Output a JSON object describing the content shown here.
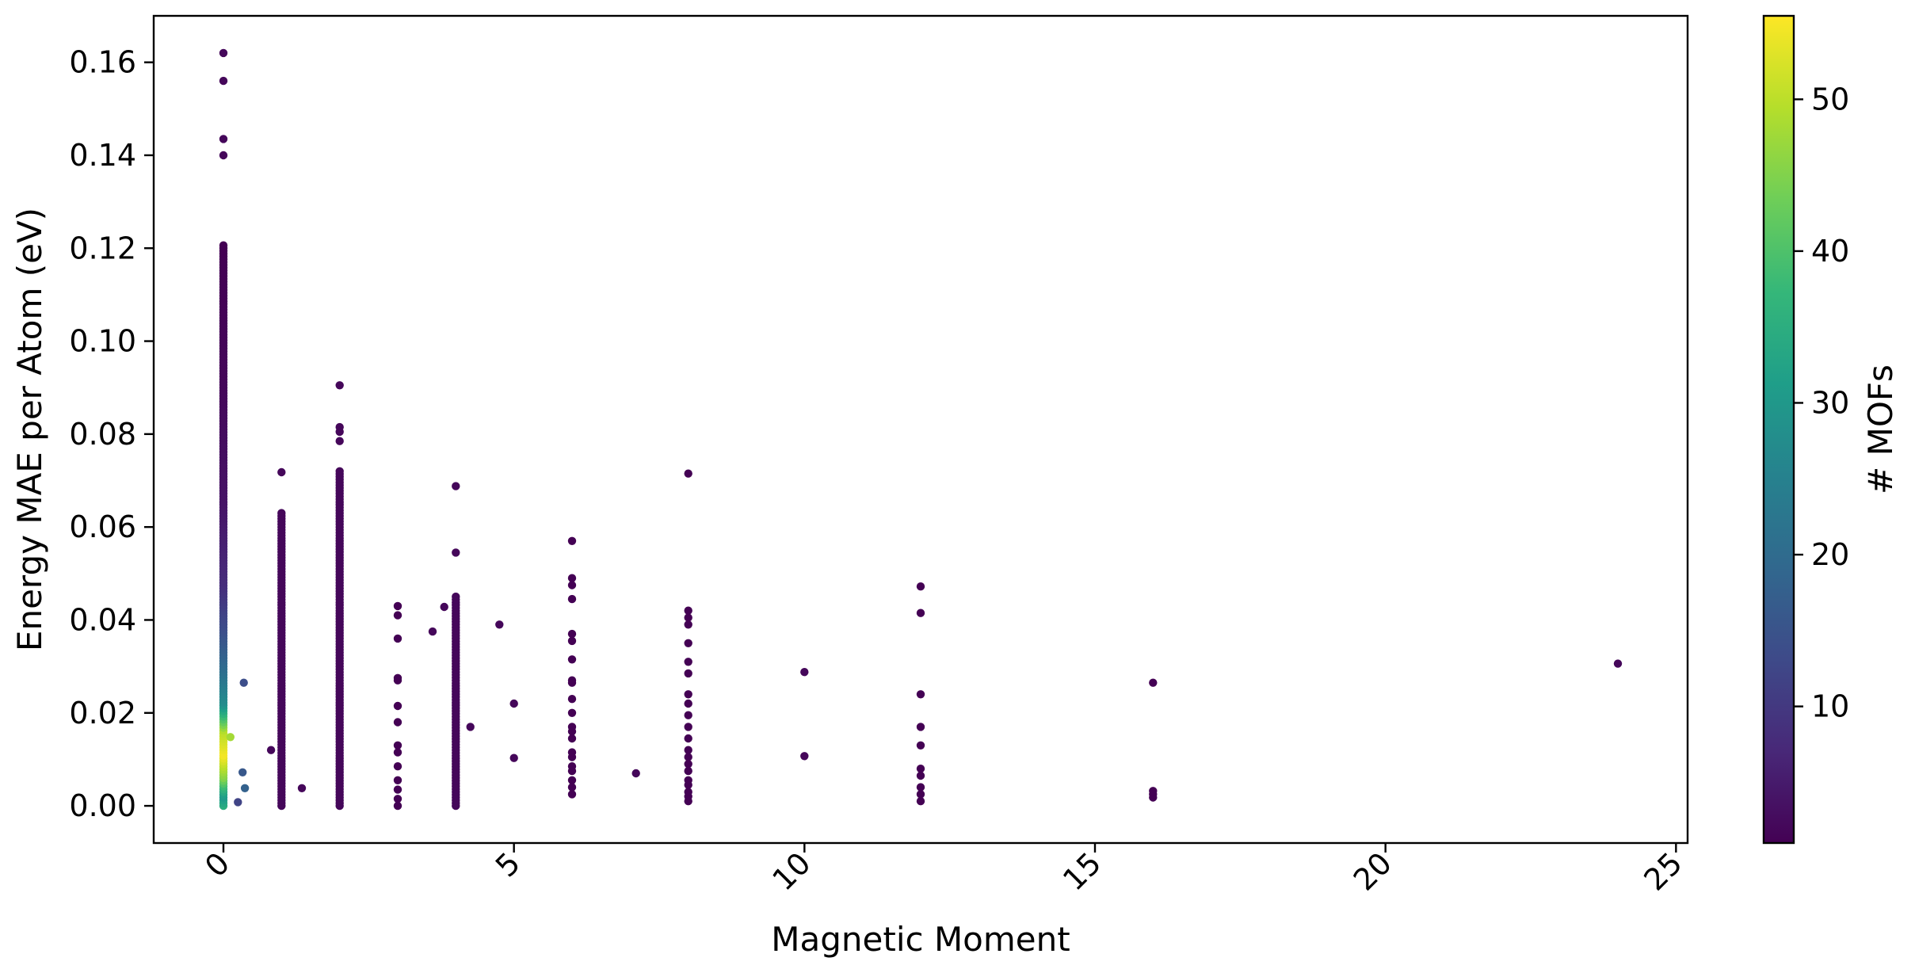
{
  "chart_data": {
    "type": "scatter",
    "title": "",
    "xlabel": "Magnetic Moment",
    "ylabel": "Energy MAE per Atom (eV)",
    "xlim": [
      -1.2,
      25.2
    ],
    "ylim": [
      -0.008,
      0.17
    ],
    "xticks": [
      0,
      5,
      10,
      15,
      20,
      25
    ],
    "xtick_labels": [
      "0",
      "5",
      "10",
      "15",
      "20",
      "25"
    ],
    "yticks": [
      0.0,
      0.02,
      0.04,
      0.06,
      0.08,
      0.1,
      0.12,
      0.14,
      0.16
    ],
    "ytick_labels": [
      "0.00",
      "0.02",
      "0.04",
      "0.06",
      "0.08",
      "0.10",
      "0.12",
      "0.14",
      "0.16"
    ],
    "xtick_rotation": -45,
    "grid": false,
    "legend": "none",
    "colorbar": {
      "label": "# MOFs",
      "colormap": "viridis",
      "range": [
        1,
        55.5
      ],
      "ticks": [
        10,
        20,
        30,
        40,
        50
      ],
      "tick_labels": [
        "10",
        "20",
        "30",
        "40",
        "50"
      ]
    },
    "colormap_stops": [
      "#440154",
      "#482878",
      "#3e4a89",
      "#31688e",
      "#26828e",
      "#1f9e89",
      "#35b779",
      "#6ece58",
      "#b5de2b",
      "#fde725"
    ],
    "columns": [
      {
        "x": 0,
        "count_color": 2,
        "ymin": 0.0,
        "ymax": 0.121,
        "extra_y": [
          0.14,
          0.1435,
          0.156,
          0.162
        ],
        "color_gradient": [
          [
            0.0,
            35
          ],
          [
            0.002,
            30
          ],
          [
            0.006,
            45
          ],
          [
            0.011,
            55
          ],
          [
            0.016,
            50
          ],
          [
            0.022,
            28
          ],
          [
            0.03,
            20
          ],
          [
            0.038,
            14
          ],
          [
            0.048,
            8
          ],
          [
            0.065,
            4
          ],
          [
            0.09,
            2
          ],
          [
            0.121,
            1
          ]
        ]
      },
      {
        "x": 1,
        "count_color": 2,
        "ymin": 0.0,
        "ymax": 0.063,
        "extra_y": [
          0.0718
        ]
      },
      {
        "x": 2,
        "count_color": 2,
        "ymin": 0.0,
        "ymax": 0.072,
        "extra_y": [
          0.0785,
          0.0805,
          0.0815,
          0.0905
        ]
      },
      {
        "x": 3,
        "count_color": 1,
        "ymin": 0.0,
        "ymax": 0.0,
        "extra_y": [
          0.0,
          0.0015,
          0.0035,
          0.0055,
          0.0085,
          0.0115,
          0.013,
          0.018,
          0.0215,
          0.027,
          0.0275,
          0.036,
          0.041,
          0.043
        ]
      },
      {
        "x": 4,
        "count_color": 2,
        "ymin": 0.0,
        "ymax": 0.045,
        "extra_y": [
          0.0545,
          0.0688
        ]
      },
      {
        "x": 6,
        "count_color": 1,
        "ymin": 0.0,
        "ymax": 0.0,
        "extra_y": [
          0.0025,
          0.004,
          0.0055,
          0.0075,
          0.0085,
          0.0105,
          0.0115,
          0.0145,
          0.016,
          0.017,
          0.02,
          0.023,
          0.0265,
          0.027,
          0.0315,
          0.0355,
          0.037,
          0.0445,
          0.0475,
          0.049,
          0.057
        ]
      },
      {
        "x": 8,
        "count_color": 1,
        "ymin": 0.0,
        "ymax": 0.0,
        "extra_y": [
          0.001,
          0.002,
          0.003,
          0.0045,
          0.0055,
          0.0075,
          0.009,
          0.0105,
          0.012,
          0.0145,
          0.017,
          0.0195,
          0.022,
          0.024,
          0.0285,
          0.031,
          0.035,
          0.039,
          0.0405,
          0.042,
          0.0715
        ]
      },
      {
        "x": 12,
        "count_color": 1,
        "ymin": 0.0,
        "ymax": 0.0,
        "extra_y": [
          0.001,
          0.0025,
          0.004,
          0.0065,
          0.008,
          0.013,
          0.017,
          0.024,
          0.0415,
          0.0472
        ]
      },
      {
        "x": 16,
        "count_color": 1,
        "ymin": 0.0,
        "ymax": 0.0,
        "extra_y": [
          0.0018,
          0.0025,
          0.0032,
          0.0265
        ]
      }
    ],
    "points": [
      {
        "x": 0.12,
        "y": 0.0148,
        "count": 48
      },
      {
        "x": 0.35,
        "y": 0.0265,
        "count": 14
      },
      {
        "x": 0.33,
        "y": 0.0072,
        "count": 16
      },
      {
        "x": 0.37,
        "y": 0.0038,
        "count": 18
      },
      {
        "x": 0.25,
        "y": 0.0008,
        "count": 12
      },
      {
        "x": 0.82,
        "y": 0.012,
        "count": 2
      },
      {
        "x": 1.35,
        "y": 0.0038,
        "count": 2
      },
      {
        "x": 3.6,
        "y": 0.0375,
        "count": 2
      },
      {
        "x": 3.8,
        "y": 0.0428,
        "count": 2
      },
      {
        "x": 4.25,
        "y": 0.017,
        "count": 2
      },
      {
        "x": 4.75,
        "y": 0.039,
        "count": 2
      },
      {
        "x": 5.0,
        "y": 0.022,
        "count": 2
      },
      {
        "x": 5.0,
        "y": 0.0103,
        "count": 2
      },
      {
        "x": 7.1,
        "y": 0.007,
        "count": 2
      },
      {
        "x": 10.0,
        "y": 0.0288,
        "count": 2
      },
      {
        "x": 10.0,
        "y": 0.0107,
        "count": 2
      },
      {
        "x": 24.0,
        "y": 0.0306,
        "count": 2
      }
    ]
  }
}
